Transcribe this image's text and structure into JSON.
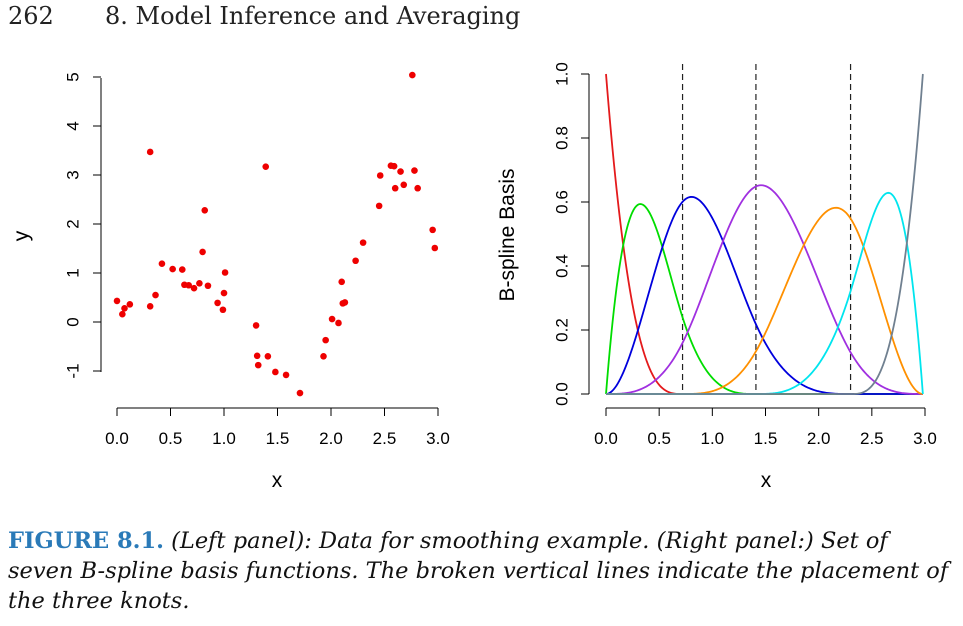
{
  "header": {
    "page_number": "262",
    "chapter_title": "8. Model Inference and Averaging"
  },
  "chart_data": [
    {
      "type": "scatter",
      "title": "",
      "xlabel": "x",
      "ylabel": "y",
      "xlim": [
        0.0,
        3.0
      ],
      "ylim": [
        -1.7,
        5.2
      ],
      "xticks": [
        "0.0",
        "0.5",
        "1.0",
        "1.5",
        "2.0",
        "2.5",
        "3.0"
      ],
      "yticks": [
        "-1",
        "0",
        "1",
        "2",
        "3",
        "4",
        "5"
      ],
      "marker_color": "#ee0000",
      "points": [
        [
          0.0,
          0.43
        ],
        [
          0.05,
          0.16
        ],
        [
          0.07,
          0.28
        ],
        [
          0.12,
          0.36
        ],
        [
          0.31,
          0.32
        ],
        [
          0.31,
          3.47
        ],
        [
          0.36,
          0.55
        ],
        [
          0.42,
          1.19
        ],
        [
          0.52,
          1.08
        ],
        [
          0.61,
          1.07
        ],
        [
          0.63,
          0.76
        ],
        [
          0.67,
          0.75
        ],
        [
          0.72,
          0.69
        ],
        [
          0.77,
          0.79
        ],
        [
          0.8,
          1.43
        ],
        [
          0.82,
          2.28
        ],
        [
          0.85,
          0.74
        ],
        [
          0.94,
          0.39
        ],
        [
          0.99,
          0.25
        ],
        [
          1.0,
          0.59
        ],
        [
          1.01,
          1.01
        ],
        [
          1.3,
          -0.07
        ],
        [
          1.31,
          -0.69
        ],
        [
          1.32,
          -0.88
        ],
        [
          1.39,
          3.17
        ],
        [
          1.41,
          -0.7
        ],
        [
          1.48,
          -1.02
        ],
        [
          1.58,
          -1.08
        ],
        [
          1.71,
          -1.45
        ],
        [
          1.93,
          -0.7
        ],
        [
          1.95,
          -0.37
        ],
        [
          2.01,
          0.06
        ],
        [
          2.07,
          -0.02
        ],
        [
          2.1,
          0.82
        ],
        [
          2.11,
          0.38
        ],
        [
          2.13,
          0.4
        ],
        [
          2.23,
          1.25
        ],
        [
          2.3,
          1.62
        ],
        [
          2.45,
          2.37
        ],
        [
          2.46,
          2.99
        ],
        [
          2.56,
          3.19
        ],
        [
          2.59,
          3.18
        ],
        [
          2.6,
          2.73
        ],
        [
          2.65,
          3.07
        ],
        [
          2.68,
          2.8
        ],
        [
          2.76,
          5.04
        ],
        [
          2.78,
          3.09
        ],
        [
          2.81,
          2.73
        ],
        [
          2.95,
          1.88
        ],
        [
          2.97,
          1.51
        ]
      ]
    },
    {
      "type": "line",
      "title": "",
      "xlabel": "x",
      "ylabel": "B-spline Basis",
      "xlim": [
        0.0,
        3.0
      ],
      "ylim": [
        0.0,
        1.0
      ],
      "xticks": [
        "0.0",
        "0.5",
        "1.0",
        "1.5",
        "2.0",
        "2.5",
        "3.0"
      ],
      "yticks": [
        "0.0",
        "0.2",
        "0.4",
        "0.6",
        "0.8",
        "1.0"
      ],
      "knots": [
        0.72,
        1.41,
        2.3
      ],
      "boundary": [
        0.0,
        2.98
      ],
      "line_colors": [
        "#e41a1c",
        "#00dd00",
        "#0000dd",
        "#a030e0",
        "#ff9000",
        "#00e5ee",
        "#708090"
      ],
      "series": [
        {
          "values_at_peak": [
            0.0,
            1.0
          ]
        },
        {
          "values_at_peak": [
            0.33,
            0.59
          ]
        },
        {
          "values_at_peak": [
            0.81,
            0.62
          ]
        },
        {
          "values_at_peak": [
            1.46,
            0.65
          ]
        },
        {
          "values_at_peak": [
            2.15,
            0.58
          ]
        },
        {
          "values_at_peak": [
            2.65,
            0.63
          ]
        },
        {
          "values_at_peak": [
            2.98,
            1.0
          ]
        }
      ]
    }
  ],
  "caption": {
    "label": "FIGURE 8.1.",
    "text": " (Left panel): Data for smoothing example. (Right panel:) Set of seven B-spline basis functions. The broken vertical lines indicate the placement of the three knots."
  }
}
